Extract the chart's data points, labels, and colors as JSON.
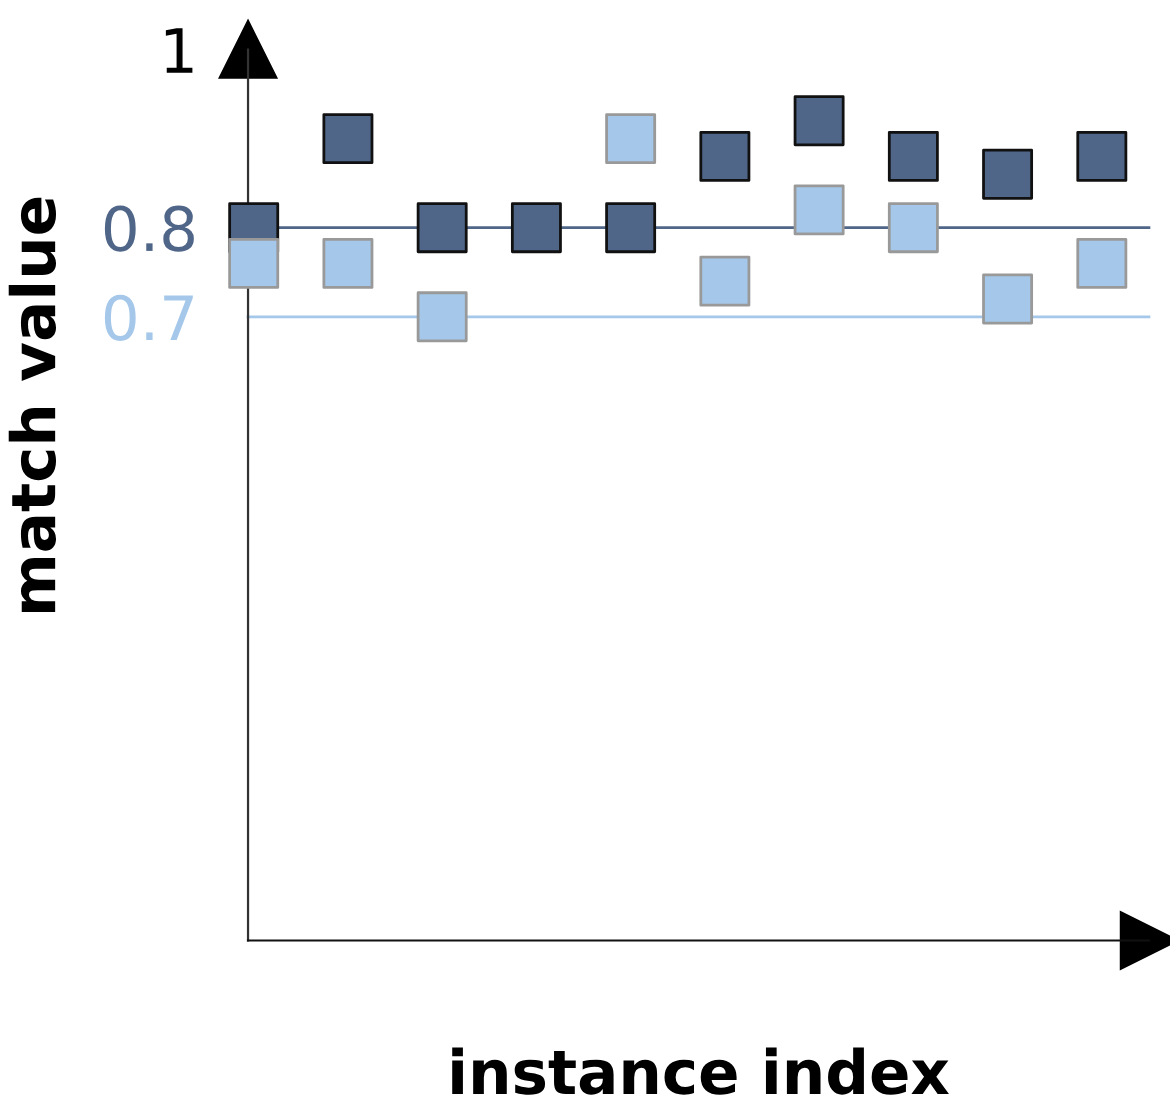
{
  "chart_data": {
    "type": "scatter",
    "xlabel": "instance index",
    "ylabel": "match value",
    "categories": [
      null,
      null,
      null,
      null,
      null,
      null,
      null,
      null,
      null,
      null
    ],
    "series": [
      {
        "color": "#4f6688",
        "values": [
          0.8,
          0.9,
          0.8,
          0.8,
          0.8,
          0.88,
          0.92,
          0.88,
          0.86,
          0.88
        ]
      },
      {
        "color": "#a5c8ea",
        "values": [
          0.76,
          0.76,
          0.7,
          null,
          0.9,
          0.74,
          0.82,
          0.8,
          0.72,
          0.76
        ]
      }
    ],
    "ylim": [
      0,
      1
    ],
    "yticks": [
      1,
      0.8,
      0.7
    ],
    "marker": "square",
    "grid": false,
    "legend": false,
    "ref_lines": [
      {
        "axis": "y",
        "value": 0.8,
        "color": "#4f6688"
      },
      {
        "axis": "y",
        "value": 0.7,
        "color": "#a5c8ea"
      }
    ]
  }
}
